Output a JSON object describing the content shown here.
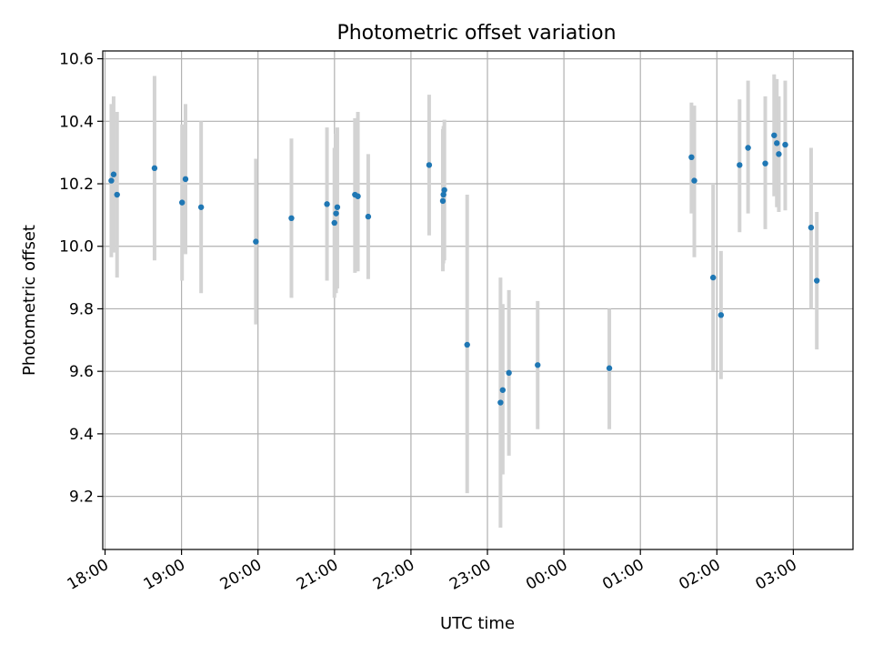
{
  "chart_data": {
    "type": "scatter",
    "title": "Photometric offset variation",
    "xlabel": "UTC time",
    "ylabel": "Photometric offset",
    "x_range_hours": [
      17.97,
      27.78
    ],
    "ylim": [
      9.03,
      10.625
    ],
    "x_ticks": [
      {
        "hour": 18,
        "label": "18:00"
      },
      {
        "hour": 19,
        "label": "19:00"
      },
      {
        "hour": 20,
        "label": "20:00"
      },
      {
        "hour": 21,
        "label": "21:00"
      },
      {
        "hour": 22,
        "label": "22:00"
      },
      {
        "hour": 23,
        "label": "23:00"
      },
      {
        "hour": 24,
        "label": "00:00"
      },
      {
        "hour": 25,
        "label": "01:00"
      },
      {
        "hour": 26,
        "label": "02:00"
      },
      {
        "hour": 27,
        "label": "03:00"
      }
    ],
    "y_ticks": [
      {
        "value": 9.2,
        "label": "9.2"
      },
      {
        "value": 9.4,
        "label": "9.4"
      },
      {
        "value": 9.6,
        "label": "9.6"
      },
      {
        "value": 9.8,
        "label": "9.8"
      },
      {
        "value": 10.0,
        "label": "10.0"
      },
      {
        "value": 10.2,
        "label": "10.2"
      },
      {
        "value": 10.4,
        "label": "10.4"
      },
      {
        "value": 10.6,
        "label": "10.6"
      }
    ],
    "grid": true,
    "point_color": "#1f77b4",
    "errorbar_color": "#d3d3d3",
    "points": [
      {
        "t": "18:05",
        "hour": 18.082,
        "y": 10.21,
        "lo": 9.965,
        "hi": 10.455
      },
      {
        "t": "18:06",
        "hour": 18.112,
        "y": 10.23,
        "lo": 9.98,
        "hi": 10.48
      },
      {
        "t": "18:09",
        "hour": 18.157,
        "y": 10.165,
        "lo": 9.9,
        "hi": 10.43
      },
      {
        "t": "18:39",
        "hour": 18.647,
        "y": 10.25,
        "lo": 9.955,
        "hi": 10.545
      },
      {
        "t": "19:00",
        "hour": 19.007,
        "y": 10.14,
        "lo": 9.89,
        "hi": 10.39
      },
      {
        "t": "19:03",
        "hour": 19.052,
        "y": 10.215,
        "lo": 9.975,
        "hi": 10.455
      },
      {
        "t": "19:15",
        "hour": 19.256,
        "y": 10.125,
        "lo": 9.85,
        "hi": 10.4
      },
      {
        "t": "19:58",
        "hour": 19.972,
        "y": 10.015,
        "lo": 9.75,
        "hi": 10.28
      },
      {
        "t": "20:26",
        "hour": 20.437,
        "y": 10.09,
        "lo": 9.835,
        "hi": 10.345
      },
      {
        "t": "20:54",
        "hour": 20.902,
        "y": 10.135,
        "lo": 9.89,
        "hi": 10.38
      },
      {
        "t": "21:00",
        "hour": 20.999,
        "y": 10.075,
        "lo": 9.835,
        "hi": 10.315
      },
      {
        "t": "21:01",
        "hour": 21.021,
        "y": 10.105,
        "lo": 9.85,
        "hi": 10.36
      },
      {
        "t": "21:02",
        "hour": 21.037,
        "y": 10.125,
        "lo": 9.865,
        "hi": 10.38
      },
      {
        "t": "21:16",
        "hour": 21.268,
        "y": 10.165,
        "lo": 9.915,
        "hi": 10.41
      },
      {
        "t": "21:18",
        "hour": 21.306,
        "y": 10.16,
        "lo": 9.92,
        "hi": 10.43
      },
      {
        "t": "21:26",
        "hour": 21.441,
        "y": 10.095,
        "lo": 9.895,
        "hi": 10.295
      },
      {
        "t": "22:14",
        "hour": 22.238,
        "y": 10.26,
        "lo": 10.035,
        "hi": 10.485
      },
      {
        "t": "22:25",
        "hour": 22.417,
        "y": 10.145,
        "lo": 9.92,
        "hi": 10.375
      },
      {
        "t": "22:25",
        "hour": 22.425,
        "y": 10.165,
        "lo": 9.945,
        "hi": 10.385
      },
      {
        "t": "22:26",
        "hour": 22.437,
        "y": 10.18,
        "lo": 9.955,
        "hi": 10.405
      },
      {
        "t": "22:44",
        "hour": 22.735,
        "y": 9.685,
        "lo": 9.21,
        "hi": 10.165
      },
      {
        "t": "23:10",
        "hour": 23.171,
        "y": 9.5,
        "lo": 9.1,
        "hi": 9.9
      },
      {
        "t": "23:12",
        "hour": 23.2,
        "y": 9.54,
        "lo": 9.27,
        "hi": 9.815
      },
      {
        "t": "23:17",
        "hour": 23.281,
        "y": 9.595,
        "lo": 9.33,
        "hi": 9.86
      },
      {
        "t": "23:39",
        "hour": 23.657,
        "y": 9.62,
        "lo": 9.415,
        "hi": 9.825
      },
      {
        "t": "00:35",
        "hour": 24.594,
        "y": 9.61,
        "lo": 9.415,
        "hi": 9.8
      },
      {
        "t": "01:40",
        "hour": 25.668,
        "y": 10.285,
        "lo": 10.105,
        "hi": 10.46
      },
      {
        "t": "01:42",
        "hour": 25.705,
        "y": 10.21,
        "lo": 9.965,
        "hi": 10.45
      },
      {
        "t": "01:57",
        "hour": 25.951,
        "y": 9.9,
        "lo": 9.6,
        "hi": 10.2
      },
      {
        "t": "02:03",
        "hour": 26.054,
        "y": 9.78,
        "lo": 9.575,
        "hi": 9.985
      },
      {
        "t": "02:17",
        "hour": 26.297,
        "y": 10.26,
        "lo": 10.045,
        "hi": 10.47
      },
      {
        "t": "02:24",
        "hour": 26.408,
        "y": 10.315,
        "lo": 10.105,
        "hi": 10.53
      },
      {
        "t": "02:38",
        "hour": 26.633,
        "y": 10.265,
        "lo": 10.055,
        "hi": 10.48
      },
      {
        "t": "02:45",
        "hour": 26.749,
        "y": 10.355,
        "lo": 10.16,
        "hi": 10.55
      },
      {
        "t": "02:47",
        "hour": 26.784,
        "y": 10.33,
        "lo": 10.125,
        "hi": 10.535
      },
      {
        "t": "02:49",
        "hour": 26.81,
        "y": 10.295,
        "lo": 10.11,
        "hi": 10.48
      },
      {
        "t": "02:54",
        "hour": 26.894,
        "y": 10.325,
        "lo": 10.115,
        "hi": 10.53
      },
      {
        "t": "03:14",
        "hour": 27.232,
        "y": 10.06,
        "lo": 9.8,
        "hi": 10.315
      },
      {
        "t": "03:18",
        "hour": 27.307,
        "y": 9.89,
        "lo": 9.67,
        "hi": 10.11
      }
    ]
  }
}
